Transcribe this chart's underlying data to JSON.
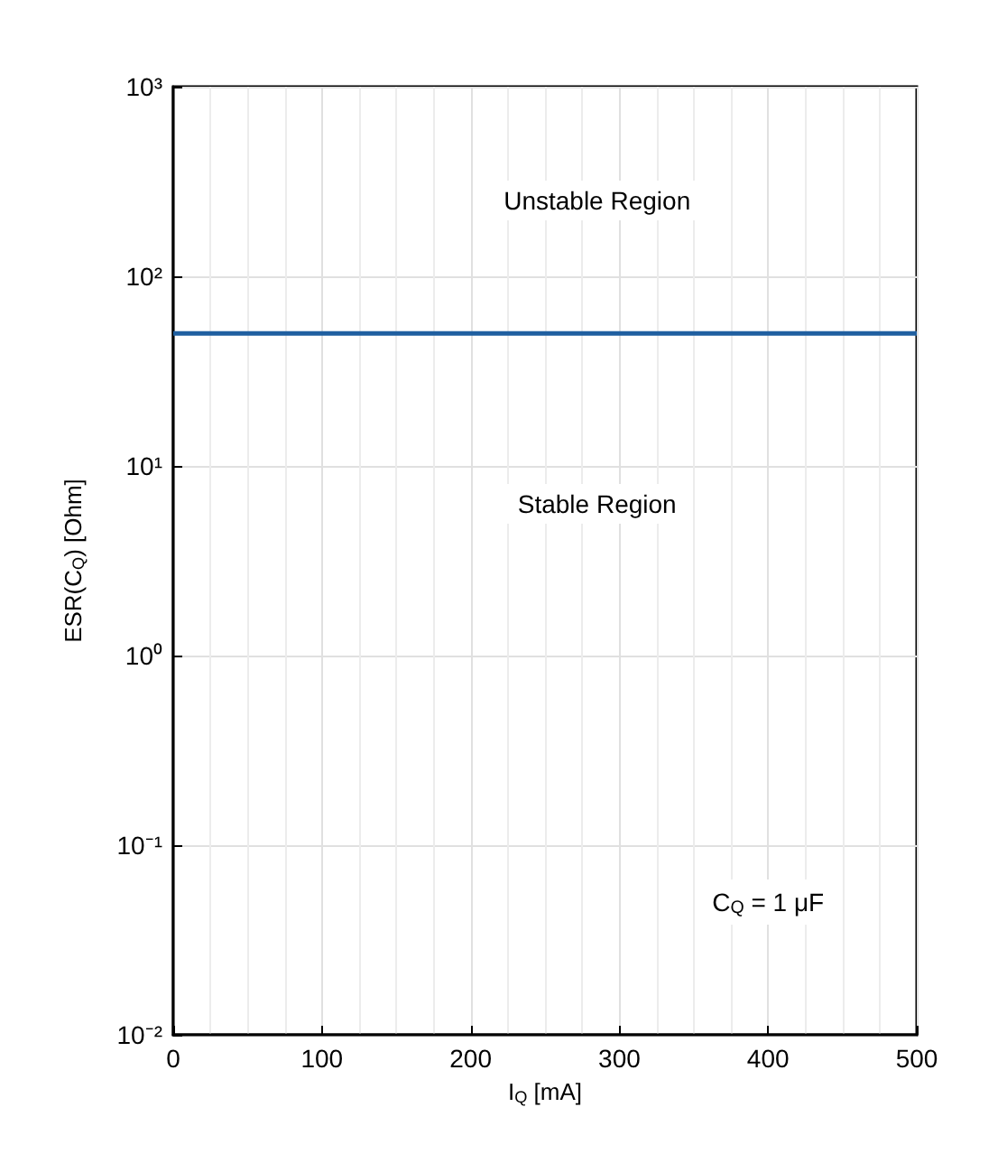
{
  "chart_data": {
    "type": "line",
    "xlabel": "I$_{Q}$ [mA]",
    "ylabel": "ESR(C$_{Q}$) [Ohm]",
    "series": [
      {
        "x": [
          0,
          500
        ],
        "values": [
          50,
          50
        ],
        "color": "#1f5fa0"
      }
    ],
    "xlim": [
      0,
      500
    ],
    "xticks": [
      0,
      100,
      200,
      300,
      400,
      500
    ],
    "ylim": [
      0.01,
      1000
    ],
    "yticks": [
      {
        "value": 0.01,
        "label": "10⁻²"
      },
      {
        "value": 0.1,
        "label": "10⁻¹"
      },
      {
        "value": 1,
        "label": "10⁰"
      },
      {
        "value": 10,
        "label": "10¹"
      },
      {
        "value": 100,
        "label": "10²"
      },
      {
        "value": 1000,
        "label": "10³"
      }
    ],
    "log": "y",
    "grid": true,
    "marker": "none",
    "line_style": "solid",
    "annotations": [
      "Unstable Region",
      "Stable Region",
      "C$_{Q}$ = 1 μF"
    ]
  }
}
